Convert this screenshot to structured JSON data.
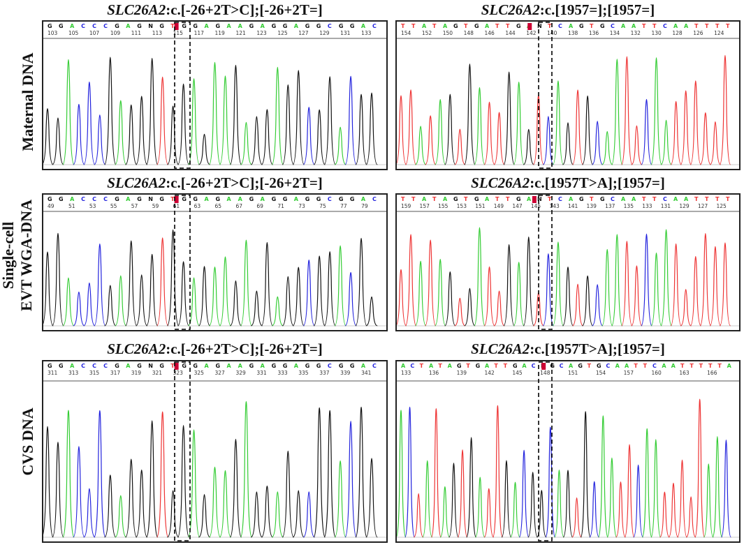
{
  "rows": [
    {
      "label_lines": [
        "Maternal DNA"
      ]
    },
    {
      "label_lines": [
        "Single-cell",
        "EVT WGA-DNA"
      ]
    },
    {
      "label_lines": [
        "CVS DNA"
      ]
    }
  ],
  "panels": [
    {
      "id": "p1",
      "title_gene": "SLC26A2",
      "title_rest": ":c.[-26+2T>C];[-26+2T=]",
      "bases": [
        "G",
        "G",
        "A",
        "C",
        "C",
        "C",
        "G",
        "A",
        "G",
        "N",
        "G",
        "T",
        "G",
        "G",
        "A",
        "G",
        "A",
        "A",
        "G",
        "A",
        "G",
        "G",
        "A",
        "G",
        "G",
        "C",
        "G",
        "G",
        "A",
        "C"
      ],
      "positions": [
        "103",
        "105",
        "107",
        "109",
        "111",
        "113",
        "115",
        "117",
        "119",
        "121",
        "123",
        "125",
        "127",
        "129",
        "131",
        "133"
      ],
      "marked_position": "115"
    },
    {
      "id": "p2",
      "title_gene": "SLC26A2",
      "title_rest": ":c.[1957=];[1957=]",
      "bases": [
        "T",
        "T",
        "A",
        "T",
        "A",
        "G",
        "T",
        "G",
        "A",
        "T",
        "T",
        "G",
        "A",
        "N",
        "T",
        "C",
        "A",
        "G",
        "T",
        "G",
        "C",
        "A",
        "A",
        "T",
        "T",
        "C",
        "A",
        "A",
        "T",
        "T",
        "T",
        "T"
      ],
      "positions": [
        "154",
        "152",
        "150",
        "148",
        "146",
        "144",
        "142",
        "140",
        "138",
        "136",
        "134",
        "132",
        "130",
        "128",
        "126",
        "124"
      ],
      "marked_position": "142"
    },
    {
      "id": "p3",
      "title_gene": "SLC26A2",
      "title_rest": ":c.[-26+2T>C];[-26+2T=]",
      "bases": [
        "G",
        "G",
        "A",
        "C",
        "C",
        "C",
        "G",
        "A",
        "G",
        "N",
        "G",
        "T",
        "G",
        "G",
        "A",
        "G",
        "A",
        "A",
        "G",
        "A",
        "G",
        "G",
        "A",
        "G",
        "G",
        "C",
        "G",
        "G",
        "A",
        "C"
      ],
      "positions": [
        "49",
        "51",
        "53",
        "55",
        "57",
        "59",
        "61",
        "63",
        "65",
        "67",
        "69",
        "71",
        "73",
        "75",
        "77",
        "79"
      ],
      "marked_position": "61"
    },
    {
      "id": "p4",
      "title_gene": "SLC26A2",
      "title_rest": ":c.[1957T>A];[1957=]",
      "bases": [
        "T",
        "T",
        "A",
        "T",
        "A",
        "G",
        "T",
        "G",
        "A",
        "T",
        "T",
        "G",
        "A",
        "N",
        "T",
        "C",
        "A",
        "G",
        "T",
        "G",
        "C",
        "A",
        "A",
        "T",
        "T",
        "C",
        "A",
        "A",
        "T",
        "T",
        "T",
        "T"
      ],
      "positions": [
        "159",
        "157",
        "155",
        "153",
        "151",
        "149",
        "147",
        "145",
        "143",
        "141",
        "139",
        "137",
        "135",
        "133",
        "131",
        "129",
        "127",
        "125"
      ],
      "marked_position": "145"
    },
    {
      "id": "p5",
      "title_gene": "SLC26A2",
      "title_rest": ":c.[-26+2T>C];[-26+2T=]",
      "bases": [
        "G",
        "G",
        "A",
        "C",
        "C",
        "C",
        "G",
        "A",
        "G",
        "N",
        "G",
        "T",
        "G",
        "G",
        "A",
        "G",
        "A",
        "A",
        "G",
        "A",
        "G",
        "G",
        "A",
        "G",
        "G",
        "C",
        "G",
        "G",
        "A",
        "C"
      ],
      "positions": [
        "311",
        "313",
        "315",
        "317",
        "319",
        "321",
        "323",
        "325",
        "327",
        "329",
        "331",
        "333",
        "335",
        "337",
        "339",
        "341"
      ],
      "marked_position": "323"
    },
    {
      "id": "p6",
      "title_gene": "SLC26A2",
      "title_rest": ":c.[1957T>A];[1957=]",
      "bases": [
        "A",
        "C",
        "T",
        "A",
        "T",
        "A",
        "G",
        "T",
        "G",
        "A",
        "T",
        "T",
        "G",
        "A",
        "C",
        "N",
        "G",
        "C",
        "A",
        "G",
        "T",
        "G",
        "C",
        "A",
        "A",
        "T",
        "T",
        "C",
        "A",
        "A",
        "T",
        "T",
        "T",
        "T",
        "T",
        "A"
      ],
      "positions": [
        "133",
        "136",
        "139",
        "142",
        "145",
        "148",
        "151",
        "154",
        "157",
        "160",
        "163",
        "166"
      ],
      "marked_position": "148"
    }
  ],
  "colors": {
    "A": "#33cc33",
    "C": "#2222dd",
    "G": "#111111",
    "T": "#ee3333",
    "N": "#111111",
    "mark": "#cc0033"
  }
}
